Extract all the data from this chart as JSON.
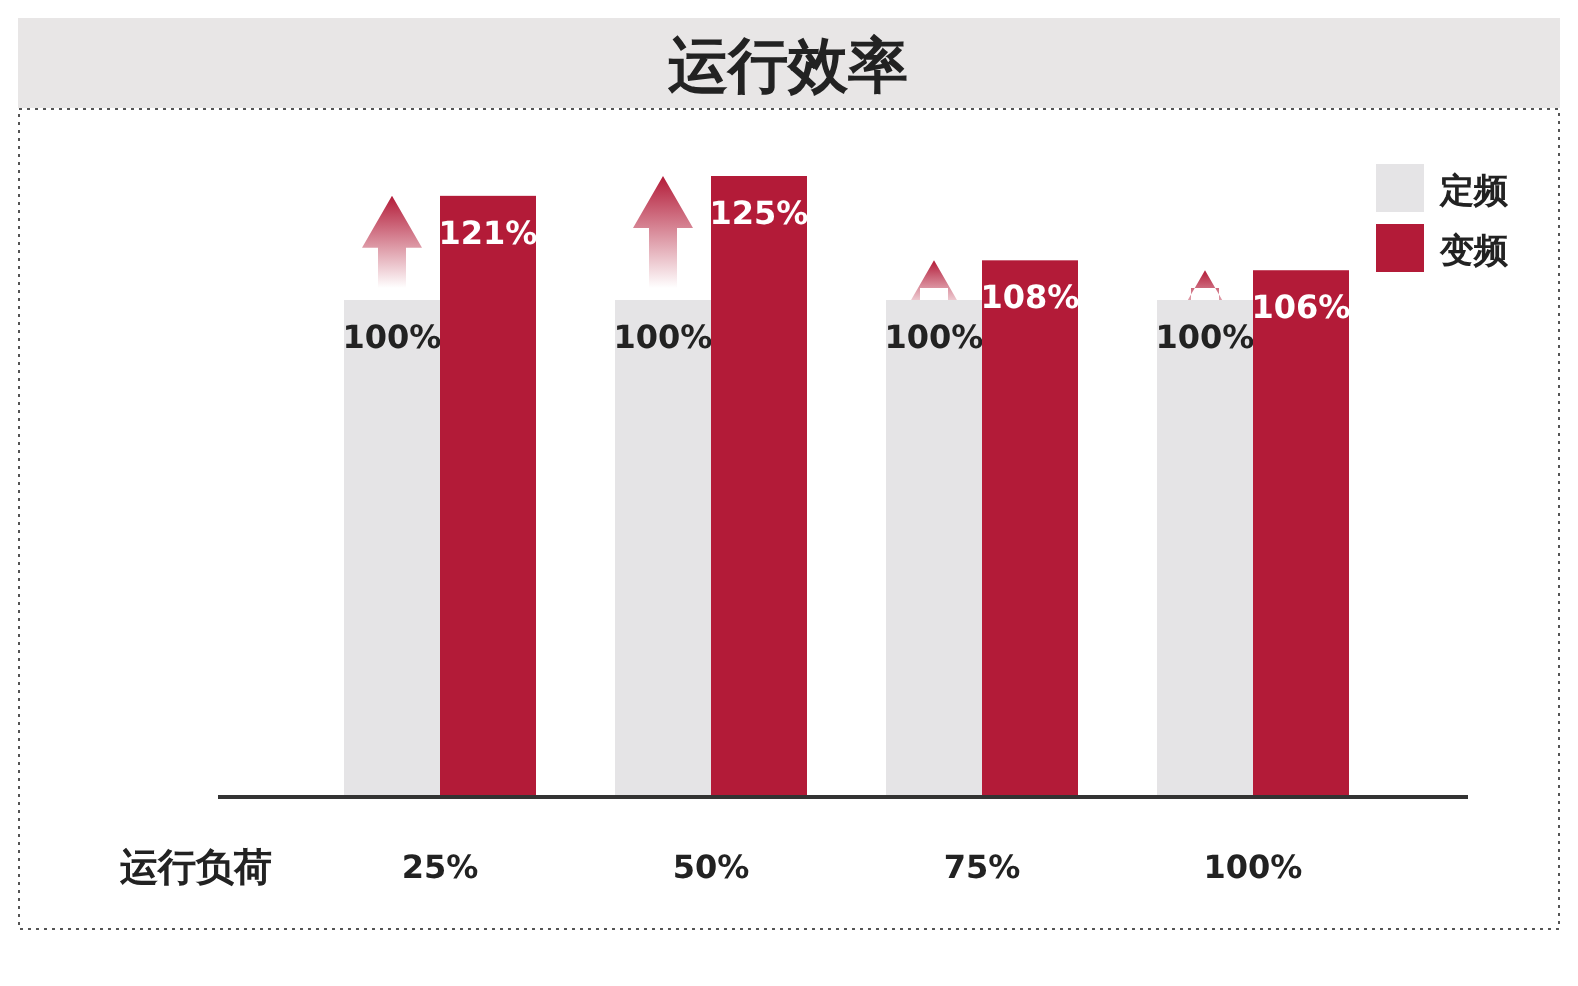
{
  "chart_data": {
    "type": "bar",
    "title": "运行效率",
    "xlabel": "运行负荷",
    "categories": [
      "25%",
      "50%",
      "75%",
      "100%"
    ],
    "series": [
      {
        "name": "定频",
        "color": "#e5e4e6",
        "values": [
          100,
          100,
          100,
          100
        ],
        "value_labels": [
          "100%",
          "100%",
          "100%",
          "100%"
        ]
      },
      {
        "name": "变频",
        "color": "#b31b38",
        "values": [
          121,
          125,
          108,
          106
        ],
        "value_labels": [
          "121%",
          "125%",
          "108%",
          "106%"
        ]
      }
    ],
    "legend": "top right"
  }
}
